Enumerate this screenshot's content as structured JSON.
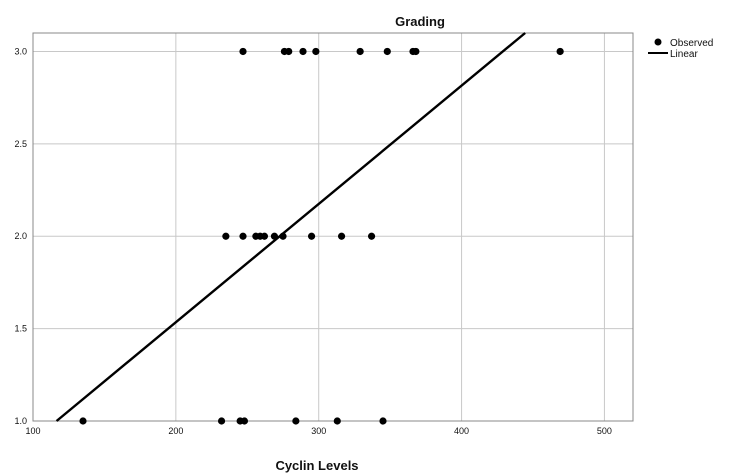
{
  "chart_data": {
    "type": "scatter",
    "title": "Grading",
    "xlabel": "Cyclin Levels",
    "ylabel": "",
    "xlim": [
      100,
      520
    ],
    "ylim": [
      1.0,
      3.1
    ],
    "xticks": [
      100,
      200,
      300,
      400,
      500
    ],
    "yticks": [
      1.0,
      1.5,
      2.0,
      2.5,
      3.0
    ],
    "xtick_labels": [
      "100",
      "200",
      "300",
      "400",
      "500"
    ],
    "ytick_labels": [
      "1.0",
      "1.5",
      "2.0",
      "2.5",
      "3.0"
    ],
    "grid": true,
    "legend_position": "top-right",
    "series": [
      {
        "name": "Observed",
        "kind": "points",
        "color": "#000000",
        "points": [
          [
            247,
            3.0
          ],
          [
            276,
            3.0
          ],
          [
            279,
            3.0
          ],
          [
            289,
            3.0
          ],
          [
            298,
            3.0
          ],
          [
            329,
            3.0
          ],
          [
            348,
            3.0
          ],
          [
            366,
            3.0
          ],
          [
            368,
            3.0
          ],
          [
            469,
            3.0
          ],
          [
            235,
            2.0
          ],
          [
            247,
            2.0
          ],
          [
            256,
            2.0
          ],
          [
            259,
            2.0
          ],
          [
            262,
            2.0
          ],
          [
            269,
            2.0
          ],
          [
            275,
            2.0
          ],
          [
            295,
            2.0
          ],
          [
            316,
            2.0
          ],
          [
            337,
            2.0
          ],
          [
            135,
            1.0
          ],
          [
            232,
            1.0
          ],
          [
            245,
            1.0
          ],
          [
            248,
            1.0
          ],
          [
            284,
            1.0
          ],
          [
            313,
            1.0
          ],
          [
            345,
            1.0
          ]
        ]
      },
      {
        "name": "Linear",
        "kind": "line",
        "color": "#000000",
        "points": [
          [
            116.5,
            1.0
          ],
          [
            444.5,
            3.1
          ]
        ]
      }
    ]
  }
}
